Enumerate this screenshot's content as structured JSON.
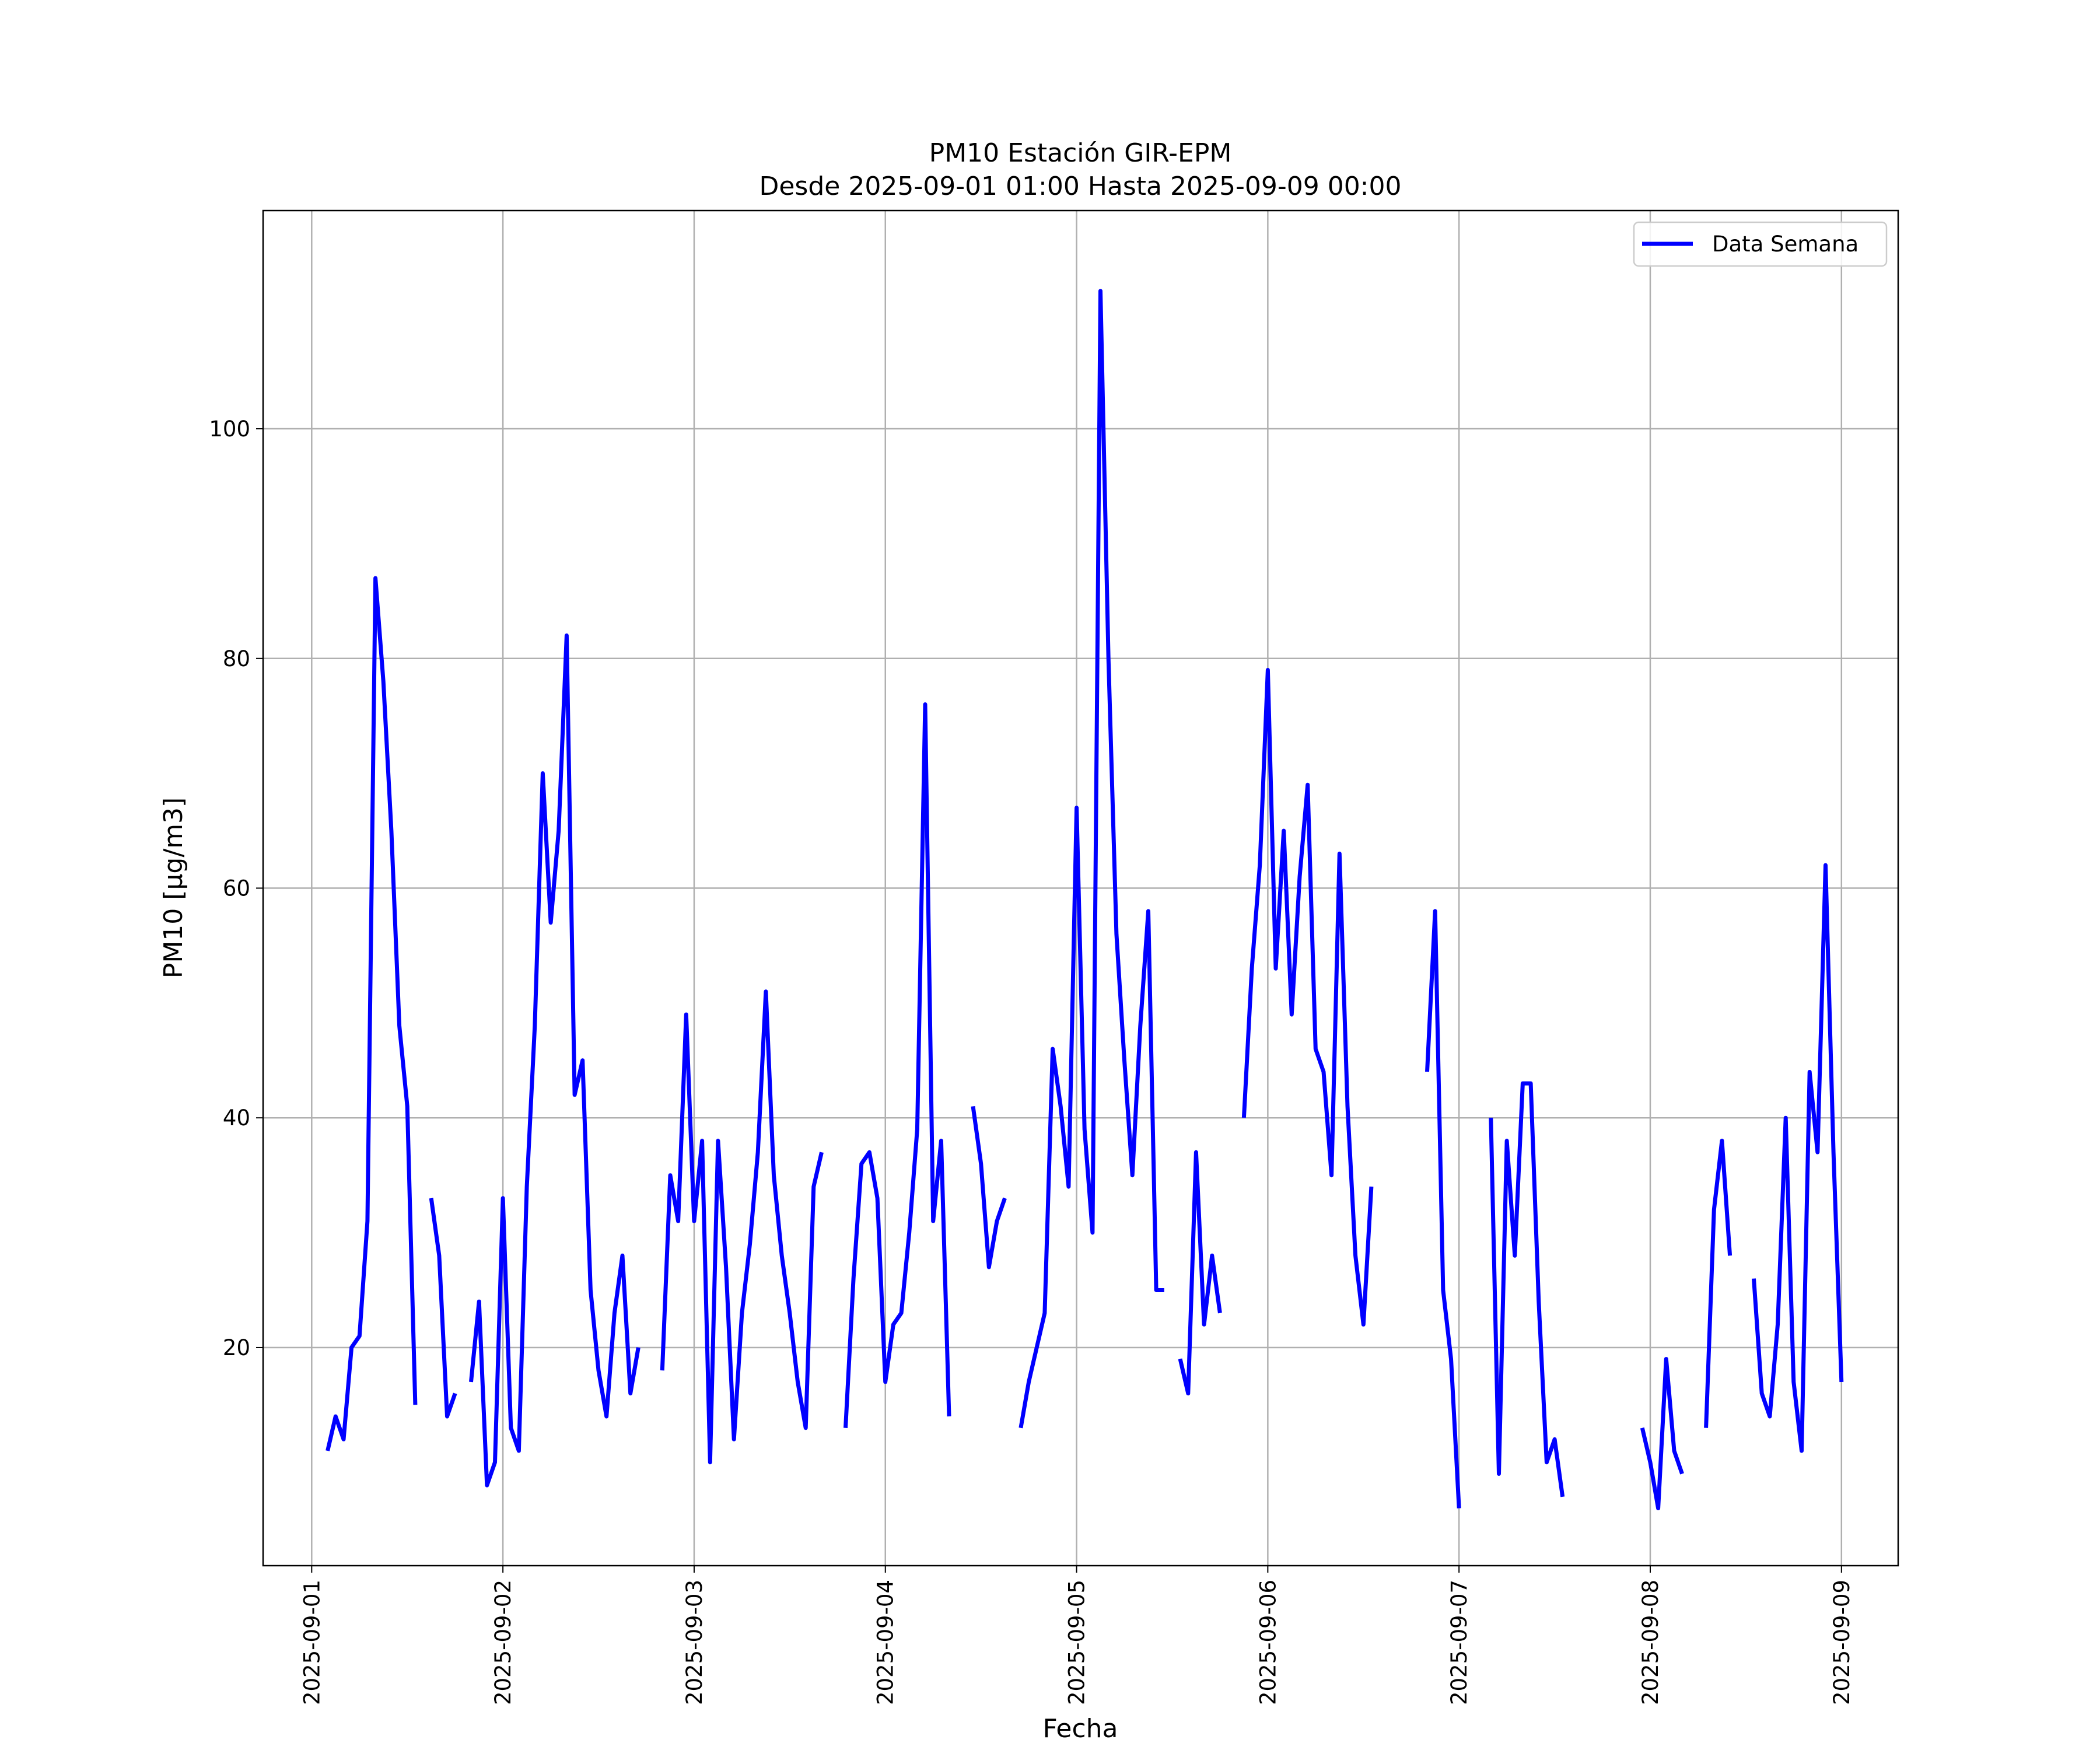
{
  "chart_data": {
    "type": "line",
    "title": "PM10 Estación GIR-EPM",
    "subtitle": "Desde 2025-09-01 01:00 Hasta 2025-09-09 00:00",
    "xlabel": "Fecha",
    "ylabel": "PM10 [μg/m3]",
    "grid": true,
    "legend_placement": "top-right",
    "xlim": [
      "2025-08-31 17:54",
      "2025-09-09 07:07"
    ],
    "ylim": [
      1,
      119
    ],
    "x_ticks": [
      "2025-09-01",
      "2025-09-02",
      "2025-09-03",
      "2025-09-04",
      "2025-09-05",
      "2025-09-06",
      "2025-09-07",
      "2025-09-08",
      "2025-09-09"
    ],
    "y_ticks": [
      20,
      40,
      60,
      80,
      100
    ],
    "series": [
      {
        "name": "Data Semana",
        "color": "#0000ff",
        "segments": [
          [
            [
              "2025-09-01 02:00",
              11
            ],
            [
              "2025-09-01 03:00",
              14
            ],
            [
              "2025-09-01 04:00",
              12
            ],
            [
              "2025-09-01 05:00",
              20
            ],
            [
              "2025-09-01 06:00",
              21
            ],
            [
              "2025-09-01 07:00",
              31
            ],
            [
              "2025-09-01 08:00",
              87
            ],
            [
              "2025-09-01 09:00",
              78
            ],
            [
              "2025-09-01 10:00",
              65
            ],
            [
              "2025-09-01 11:00",
              48
            ],
            [
              "2025-09-01 12:00",
              41
            ],
            [
              "2025-09-01 13:00",
              15
            ]
          ],
          [
            [
              "2025-09-01 15:00",
              33
            ],
            [
              "2025-09-01 16:00",
              28
            ],
            [
              "2025-09-01 17:00",
              14
            ],
            [
              "2025-09-01 18:00",
              16
            ]
          ],
          [
            [
              "2025-09-01 20:00",
              17
            ],
            [
              "2025-09-01 21:00",
              24
            ],
            [
              "2025-09-01 22:00",
              8
            ],
            [
              "2025-09-01 23:00",
              10
            ],
            [
              "2025-09-02 00:00",
              33
            ],
            [
              "2025-09-02 01:00",
              13
            ],
            [
              "2025-09-02 02:00",
              11
            ],
            [
              "2025-09-02 03:00",
              34
            ],
            [
              "2025-09-02 04:00",
              48
            ],
            [
              "2025-09-02 05:00",
              70
            ],
            [
              "2025-09-02 06:00",
              57
            ],
            [
              "2025-09-02 07:00",
              65
            ],
            [
              "2025-09-02 08:00",
              82
            ],
            [
              "2025-09-02 09:00",
              42
            ],
            [
              "2025-09-02 10:00",
              45
            ],
            [
              "2025-09-02 11:00",
              25
            ],
            [
              "2025-09-02 12:00",
              18
            ],
            [
              "2025-09-02 13:00",
              14
            ],
            [
              "2025-09-02 14:00",
              23
            ],
            [
              "2025-09-02 15:00",
              28
            ],
            [
              "2025-09-02 16:00",
              16
            ],
            [
              "2025-09-02 17:00",
              20
            ]
          ],
          [
            [
              "2025-09-02 20:00",
              18
            ],
            [
              "2025-09-02 21:00",
              35
            ],
            [
              "2025-09-02 22:00",
              31
            ],
            [
              "2025-09-02 23:00",
              49
            ],
            [
              "2025-09-03 00:00",
              31
            ],
            [
              "2025-09-03 01:00",
              38
            ],
            [
              "2025-09-03 02:00",
              10
            ],
            [
              "2025-09-03 03:00",
              38
            ],
            [
              "2025-09-03 04:00",
              27
            ],
            [
              "2025-09-03 05:00",
              12
            ],
            [
              "2025-09-03 06:00",
              23
            ],
            [
              "2025-09-03 07:00",
              29
            ],
            [
              "2025-09-03 08:00",
              37
            ],
            [
              "2025-09-03 09:00",
              51
            ],
            [
              "2025-09-03 10:00",
              35
            ],
            [
              "2025-09-03 11:00",
              28
            ],
            [
              "2025-09-03 12:00",
              23
            ],
            [
              "2025-09-03 13:00",
              17
            ],
            [
              "2025-09-03 14:00",
              13
            ],
            [
              "2025-09-03 15:00",
              34
            ],
            [
              "2025-09-03 16:00",
              37
            ]
          ],
          [
            [
              "2025-09-03 19:00",
              13
            ],
            [
              "2025-09-03 20:00",
              26
            ],
            [
              "2025-09-03 21:00",
              36
            ],
            [
              "2025-09-03 22:00",
              37
            ],
            [
              "2025-09-03 23:00",
              33
            ],
            [
              "2025-09-04 00:00",
              17
            ],
            [
              "2025-09-04 01:00",
              22
            ],
            [
              "2025-09-04 02:00",
              23
            ],
            [
              "2025-09-04 03:00",
              30
            ],
            [
              "2025-09-04 04:00",
              39
            ],
            [
              "2025-09-04 05:00",
              76
            ],
            [
              "2025-09-04 06:00",
              31
            ],
            [
              "2025-09-04 07:00",
              38
            ],
            [
              "2025-09-04 08:00",
              14
            ]
          ],
          [
            [
              "2025-09-04 11:00",
              41
            ],
            [
              "2025-09-04 12:00",
              36
            ],
            [
              "2025-09-04 13:00",
              27
            ],
            [
              "2025-09-04 14:00",
              31
            ],
            [
              "2025-09-04 15:00",
              33
            ]
          ],
          [
            [
              "2025-09-04 17:00",
              13
            ],
            [
              "2025-09-04 18:00",
              17
            ],
            [
              "2025-09-04 20:00",
              23
            ],
            [
              "2025-09-04 21:00",
              46
            ],
            [
              "2025-09-04 22:00",
              41
            ],
            [
              "2025-09-04 23:00",
              34
            ],
            [
              "2025-09-05 00:00",
              67
            ],
            [
              "2025-09-05 01:00",
              39
            ],
            [
              "2025-09-05 02:00",
              30
            ],
            [
              "2025-09-05 03:00",
              112
            ],
            [
              "2025-09-05 04:00",
              80
            ],
            [
              "2025-09-05 05:00",
              56
            ],
            [
              "2025-09-05 06:00",
              45
            ],
            [
              "2025-09-05 07:00",
              35
            ],
            [
              "2025-09-05 08:00",
              48
            ],
            [
              "2025-09-05 09:00",
              58
            ],
            [
              "2025-09-05 10:00",
              25
            ],
            [
              "2025-09-05 11:00",
              25
            ]
          ],
          [
            [
              "2025-09-05 13:00",
              19
            ],
            [
              "2025-09-05 14:00",
              16
            ],
            [
              "2025-09-05 15:00",
              37
            ],
            [
              "2025-09-05 16:00",
              22
            ],
            [
              "2025-09-05 17:00",
              28
            ],
            [
              "2025-09-05 18:00",
              23
            ]
          ],
          [
            [
              "2025-09-05 21:00",
              40
            ],
            [
              "2025-09-05 22:00",
              53
            ],
            [
              "2025-09-05 23:00",
              62
            ],
            [
              "2025-09-06 00:00",
              79
            ],
            [
              "2025-09-06 01:00",
              53
            ],
            [
              "2025-09-06 02:00",
              65
            ],
            [
              "2025-09-06 03:00",
              49
            ],
            [
              "2025-09-06 04:00",
              61
            ],
            [
              "2025-09-06 05:00",
              69
            ],
            [
              "2025-09-06 06:00",
              46
            ],
            [
              "2025-09-06 07:00",
              44
            ],
            [
              "2025-09-06 08:00",
              35
            ],
            [
              "2025-09-06 09:00",
              63
            ],
            [
              "2025-09-06 10:00",
              41
            ],
            [
              "2025-09-06 11:00",
              28
            ],
            [
              "2025-09-06 12:00",
              22
            ],
            [
              "2025-09-06 13:00",
              34
            ]
          ],
          [
            [
              "2025-09-06 20:00",
              44
            ],
            [
              "2025-09-06 21:00",
              58
            ],
            [
              "2025-09-06 22:00",
              25
            ],
            [
              "2025-09-06 23:00",
              19
            ],
            [
              "2025-09-07 00:00",
              6
            ]
          ],
          [
            [
              "2025-09-07 04:00",
              40
            ],
            [
              "2025-09-07 05:00",
              9
            ],
            [
              "2025-09-07 06:00",
              38
            ],
            [
              "2025-09-07 07:00",
              28
            ],
            [
              "2025-09-07 08:00",
              43
            ],
            [
              "2025-09-07 09:00",
              43
            ],
            [
              "2025-09-07 10:00",
              24
            ],
            [
              "2025-09-07 11:00",
              10
            ],
            [
              "2025-09-07 12:00",
              12
            ],
            [
              "2025-09-07 13:00",
              7
            ]
          ],
          [
            [
              "2025-09-07 23:00",
              13
            ],
            [
              "2025-09-08 00:00",
              10
            ],
            [
              "2025-09-08 01:00",
              6
            ],
            [
              "2025-09-08 02:00",
              19
            ],
            [
              "2025-09-08 03:00",
              11
            ],
            [
              "2025-09-08 04:00",
              9
            ]
          ],
          [
            [
              "2025-09-08 07:00",
              13
            ],
            [
              "2025-09-08 08:00",
              32
            ],
            [
              "2025-09-08 09:00",
              38
            ],
            [
              "2025-09-08 10:00",
              28
            ]
          ],
          [
            [
              "2025-09-08 13:00",
              26
            ],
            [
              "2025-09-08 14:00",
              16
            ],
            [
              "2025-09-08 15:00",
              14
            ],
            [
              "2025-09-08 16:00",
              22
            ],
            [
              "2025-09-08 17:00",
              40
            ],
            [
              "2025-09-08 18:00",
              17
            ],
            [
              "2025-09-08 19:00",
              11
            ],
            [
              "2025-09-08 20:00",
              44
            ],
            [
              "2025-09-08 21:00",
              37
            ],
            [
              "2025-09-08 22:00",
              62
            ],
            [
              "2025-09-08 23:00",
              37
            ],
            [
              "2025-09-09 00:00",
              17
            ]
          ]
        ]
      }
    ]
  }
}
